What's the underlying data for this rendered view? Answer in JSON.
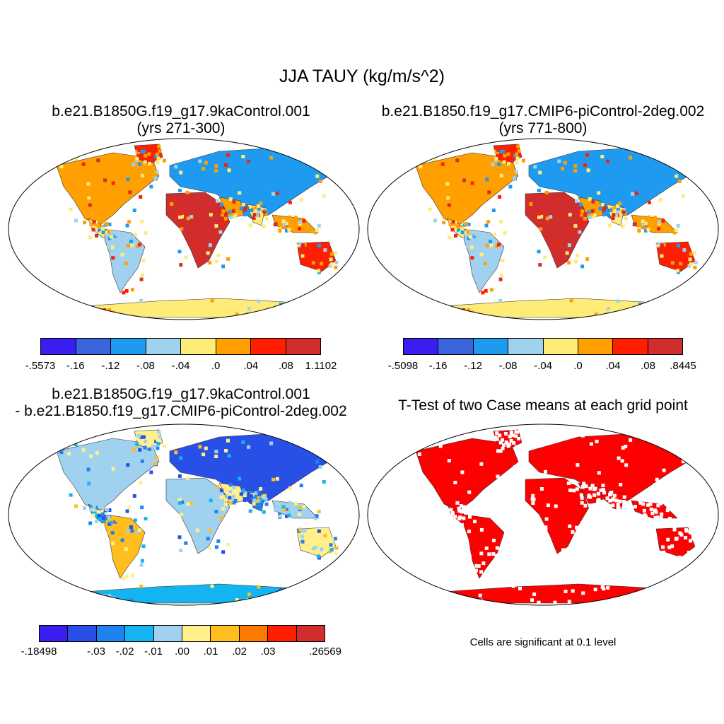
{
  "title": "JJA TAUY (kg/m/s^2)",
  "panels": [
    {
      "id": "p1",
      "title_line1": "b.e21.B1850G.f19_g17.9kaControl.001",
      "title_line2": "(yrs 271-300)",
      "scheme": "case"
    },
    {
      "id": "p2",
      "title_line1": "b.e21.B1850.f19_g17.CMIP6-piControl-2deg.002",
      "title_line2": "(yrs 771-800)",
      "scheme": "case"
    },
    {
      "id": "p3",
      "title_line1": "b.e21.B1850G.f19_g17.9kaControl.001",
      "title_line2": "- b.e21.B1850.f19_g17.CMIP6-piControl-2deg.002",
      "scheme": "diff"
    },
    {
      "id": "p4",
      "title_line1": "T-Test of two Case means at each grid point",
      "title_line2": "",
      "scheme": "ttest"
    }
  ],
  "colorbars": [
    {
      "id": "cb1",
      "colors": [
        "#3a1ef0",
        "#3c64dc",
        "#1e9bf0",
        "#a0d2f0",
        "#ffeb78",
        "#ffa000",
        "#ff1e00",
        "#d22d2d"
      ],
      "labels": [
        "-.5573",
        "-.16",
        "-.12",
        "-.08",
        "-.04",
        ".0",
        ".04",
        ".08",
        "1.1102"
      ]
    },
    {
      "id": "cb2",
      "colors": [
        "#3a1ef0",
        "#3c64dc",
        "#1e9bf0",
        "#a0d2f0",
        "#ffeb78",
        "#ffa000",
        "#ff1e00",
        "#d22d2d"
      ],
      "labels": [
        "-.5098",
        "-.16",
        "-.12",
        "-.08",
        "-.04",
        ".0",
        ".04",
        ".08",
        ".8445"
      ]
    },
    {
      "id": "cb3",
      "colors": [
        "#3a1ef0",
        "#2850e6",
        "#1e82f0",
        "#14b4f0",
        "#a0d2f0",
        "#fff08c",
        "#ffbe1e",
        "#ff7800",
        "#ff1e00",
        "#d22d2d"
      ],
      "labels": [
        "-.18498",
        "",
        "-.03",
        "-.02",
        "-.01",
        ".00",
        ".01",
        ".02",
        ".03",
        "",
        ".26569"
      ]
    }
  ],
  "significance_note": "Cells are significant at 0.1 level"
}
